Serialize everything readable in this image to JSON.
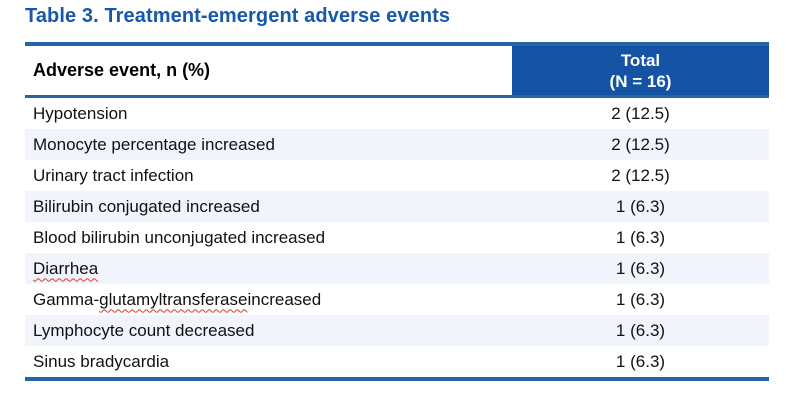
{
  "title": "Table 3. Treatment-emergent adverse events",
  "colors": {
    "title_blue": "#1658AB",
    "header_fill_blue": "#1554A5",
    "rule_blue": "#2565A6",
    "rule_light_blue": "#AECBE6",
    "row_tint": "#F1F4FA",
    "spellcheck_red": "#E0362C"
  },
  "table": {
    "header": {
      "event_column_label": "Adverse event, n (%)",
      "total_line1": "Total",
      "total_line2": "(N = 16)"
    },
    "rows": [
      {
        "pre": "Hypotension",
        "mis": "",
        "post": "",
        "value": "2 (12.5)"
      },
      {
        "pre": "Monocyte percentage increased",
        "mis": "",
        "post": "",
        "value": "2 (12.5)"
      },
      {
        "pre": "Urinary tract infection",
        "mis": "",
        "post": "",
        "value": "2 (12.5)"
      },
      {
        "pre": "Bilirubin conjugated increased",
        "mis": "",
        "post": "",
        "value": "1 (6.3)"
      },
      {
        "pre": "Blood bilirubin unconjugated increased",
        "mis": "",
        "post": "",
        "value": "1 (6.3)"
      },
      {
        "pre": "",
        "mis": "Diarrhea",
        "post": "",
        "value": "1 (6.3)"
      },
      {
        "pre": "Gamma-",
        "mis": "glutamyltransferase",
        "post": " increased",
        "value": "1 (6.3)"
      },
      {
        "pre": "Lymphocyte count decreased",
        "mis": "",
        "post": "",
        "value": "1 (6.3)"
      },
      {
        "pre": "Sinus bradycardia",
        "mis": "",
        "post": "",
        "value": "1 (6.3)"
      }
    ]
  }
}
